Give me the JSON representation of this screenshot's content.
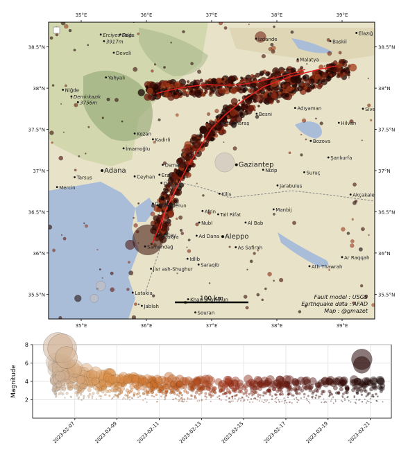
{
  "map": {
    "lon_ticks": [
      "35°E",
      "36°E",
      "37°E",
      "38°E",
      "39°E"
    ],
    "lat_ticks": [
      "38.5°N",
      "38°N",
      "37.5°N",
      "37°N",
      "36.5°N",
      "36°N",
      "35.5°N"
    ],
    "cities": [
      {
        "name": "Kayseri",
        "lon": 35.67,
        "lat": 38.83,
        "big": false
      },
      {
        "name": "Talas",
        "lon": 35.6,
        "lat": 38.65,
        "big": false
      },
      {
        "name": "Erciyes Dağı",
        "lon": 35.3,
        "lat": 38.65,
        "big": false,
        "italic": true
      },
      {
        "name": "3917m",
        "lon": 35.35,
        "lat": 38.57,
        "big": false,
        "italic": true
      },
      {
        "name": "Develi",
        "lon": 35.5,
        "lat": 38.43,
        "big": false
      },
      {
        "name": "Yahyalı",
        "lon": 35.38,
        "lat": 38.13,
        "big": false
      },
      {
        "name": "Niğde",
        "lon": 34.72,
        "lat": 37.98,
        "big": false
      },
      {
        "name": "Demirkazık",
        "lon": 34.85,
        "lat": 37.9,
        "big": false,
        "italic": true
      },
      {
        "name": "3756m",
        "lon": 34.95,
        "lat": 37.83,
        "big": false,
        "italic": true
      },
      {
        "name": "Kozan",
        "lon": 35.82,
        "lat": 37.45,
        "big": false
      },
      {
        "name": "Kadirli",
        "lon": 36.1,
        "lat": 37.38,
        "big": false
      },
      {
        "name": "İmamoğlu",
        "lon": 35.65,
        "lat": 37.27,
        "big": false
      },
      {
        "name": "Adana",
        "lon": 35.32,
        "lat": 37.0,
        "big": true
      },
      {
        "name": "Tarsus",
        "lon": 34.9,
        "lat": 36.92,
        "big": false
      },
      {
        "name": "Ceyhan",
        "lon": 35.82,
        "lat": 36.93,
        "big": false
      },
      {
        "name": "Mercin",
        "lon": 34.63,
        "lat": 36.8,
        "big": false
      },
      {
        "name": "Osmaniye",
        "lon": 36.25,
        "lat": 37.07,
        "big": false
      },
      {
        "name": "Erzin",
        "lon": 36.2,
        "lat": 36.95,
        "big": false
      },
      {
        "name": "Dörtyol",
        "lon": 36.23,
        "lat": 36.85,
        "big": false
      },
      {
        "name": "Denizciler",
        "lon": 36.1,
        "lat": 36.6,
        "big": false
      },
      {
        "name": "İskenderun",
        "lon": 36.17,
        "lat": 36.58,
        "big": false
      },
      {
        "name": "Antakya",
        "lon": 36.16,
        "lat": 36.2,
        "big": false
      },
      {
        "name": "Hatay",
        "lon": 36.2,
        "lat": 36.22,
        "big": false
      },
      {
        "name": "Samandağ",
        "lon": 35.98,
        "lat": 36.08,
        "big": false
      },
      {
        "name": "Gaziantep",
        "lon": 37.38,
        "lat": 37.07,
        "big": true
      },
      {
        "name": "Kahramanmaraş",
        "lon": 36.93,
        "lat": 37.58,
        "big": false
      },
      {
        "name": "Malatya",
        "lon": 38.32,
        "lat": 38.35,
        "big": false
      },
      {
        "name": "İzdande",
        "lon": 37.68,
        "lat": 38.6,
        "big": false
      },
      {
        "name": "Baskil",
        "lon": 38.82,
        "lat": 38.57,
        "big": false
      },
      {
        "name": "Elazığ",
        "lon": 39.22,
        "lat": 38.67,
        "big": false
      },
      {
        "name": "Adıyaman",
        "lon": 38.28,
        "lat": 37.76,
        "big": false
      },
      {
        "name": "Besni",
        "lon": 37.69,
        "lat": 37.69,
        "big": false
      },
      {
        "name": "Siverek",
        "lon": 39.32,
        "lat": 37.75,
        "big": false
      },
      {
        "name": "Hilvan",
        "lon": 38.95,
        "lat": 37.58,
        "big": false
      },
      {
        "name": "Bozova",
        "lon": 38.52,
        "lat": 37.36,
        "big": false
      },
      {
        "name": "Şanlıurfa",
        "lon": 38.79,
        "lat": 37.16,
        "big": false
      },
      {
        "name": "Suruç",
        "lon": 38.42,
        "lat": 36.98,
        "big": false
      },
      {
        "name": "Nizip",
        "lon": 37.79,
        "lat": 37.01,
        "big": false
      },
      {
        "name": "Jarabulus",
        "lon": 38.01,
        "lat": 36.82,
        "big": false
      },
      {
        "name": "Akçakale",
        "lon": 39.13,
        "lat": 36.71,
        "big": false
      },
      {
        "name": "Kilis",
        "lon": 37.12,
        "lat": 36.72,
        "big": false
      },
      {
        "name": "Tall Rifat",
        "lon": 37.1,
        "lat": 36.47,
        "big": false
      },
      {
        "name": "Afrin",
        "lon": 36.86,
        "lat": 36.51,
        "big": false
      },
      {
        "name": "Al Bab",
        "lon": 37.52,
        "lat": 36.37,
        "big": false
      },
      {
        "name": "Manbij",
        "lon": 37.95,
        "lat": 36.53,
        "big": false
      },
      {
        "name": "Nubl",
        "lon": 36.81,
        "lat": 36.37,
        "big": false
      },
      {
        "name": "Aleppo",
        "lon": 37.17,
        "lat": 36.2,
        "big": true
      },
      {
        "name": "Ad Dana",
        "lon": 36.77,
        "lat": 36.21,
        "big": false
      },
      {
        "name": "As Safirah",
        "lon": 37.37,
        "lat": 36.07,
        "big": false
      },
      {
        "name": "Idlib",
        "lon": 36.63,
        "lat": 35.93,
        "big": false
      },
      {
        "name": "Saraqib",
        "lon": 36.8,
        "lat": 35.86,
        "big": false
      },
      {
        "name": "Ath Thawrah",
        "lon": 38.5,
        "lat": 35.84,
        "big": false
      },
      {
        "name": "Ar Raqqah",
        "lon": 39.0,
        "lat": 35.95,
        "big": false
      },
      {
        "name": "Khan Shaykhun",
        "lon": 36.64,
        "lat": 35.44,
        "big": false
      },
      {
        "name": "Latakia",
        "lon": 35.79,
        "lat": 35.52,
        "big": false
      },
      {
        "name": "Jisr ash-Shughur",
        "lon": 36.07,
        "lat": 35.81,
        "big": false
      },
      {
        "name": "Jablah",
        "lon": 35.93,
        "lat": 35.36,
        "big": false
      },
      {
        "name": "Souran",
        "lon": 36.75,
        "lat": 35.28,
        "big": false
      },
      {
        "name": "Baniyas",
        "lon": 35.95,
        "lat": 35.18,
        "big": false
      }
    ],
    "scale_bar_label": "100 km",
    "credits": [
      "Fault model : USGS",
      "Earthquake data : AFAD",
      "Map : @gmazet"
    ]
  },
  "chart_data": {
    "type": "scatter",
    "title": "",
    "xlabel": "",
    "ylabel": "Magnitude",
    "ylim": [
      0,
      8
    ],
    "yticks": [
      2,
      4,
      6,
      8
    ],
    "xlim": [
      "2023-02-05",
      "2023-02-22"
    ],
    "xticks": [
      "2023-02-07",
      "2023-02-09",
      "2023-02-11",
      "2023-02-13",
      "2023-02-15",
      "2023-02-17",
      "2023-02-19",
      "2023-02-21"
    ],
    "grid": true,
    "color_map": "magnitude-sized circles colored by time: light grey → orange → dark red → black",
    "notable_events": [
      {
        "date": "2023-02-06",
        "magnitude": 7.7
      },
      {
        "date": "2023-02-06",
        "magnitude": 7.6
      },
      {
        "date": "2023-02-06",
        "magnitude": 6.6
      },
      {
        "date": "2023-02-20",
        "magnitude": 6.4
      },
      {
        "date": "2023-02-20",
        "magnitude": 5.8
      }
    ]
  }
}
